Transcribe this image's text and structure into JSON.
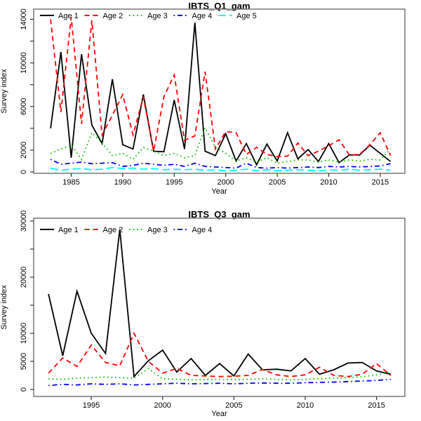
{
  "figure": {
    "background": "#ffffff",
    "axis_color": "#777777",
    "text_color": "#000000"
  },
  "chart_data": [
    {
      "type": "line",
      "title": "IBTS_Q1_gam",
      "xlabel": "Year",
      "ylabel": "Survey index",
      "ylim": [
        0,
        14000
      ],
      "xlim": [
        1983,
        2016
      ],
      "grid": false,
      "legend_position": "top-left-inside-horizontal",
      "xticks": [
        1985,
        1990,
        1995,
        2000,
        2005,
        2010,
        2015
      ],
      "yticks": [
        {
          "v": 0,
          "label": "0"
        },
        {
          "v": 2000,
          "label": "2000"
        },
        {
          "v": 4000,
          "label": ""
        },
        {
          "v": 6000,
          "label": "6000"
        },
        {
          "v": 8000,
          "label": ""
        },
        {
          "v": 10000,
          "label": "10000"
        },
        {
          "v": 12000,
          "label": ""
        },
        {
          "v": 14000,
          "label": "14000"
        }
      ],
      "years": [
        1983,
        1984,
        1985,
        1986,
        1987,
        1988,
        1989,
        1990,
        1991,
        1992,
        1993,
        1994,
        1995,
        1996,
        1997,
        1998,
        1999,
        2000,
        2001,
        2002,
        2003,
        2004,
        2005,
        2006,
        2007,
        2008,
        2009,
        2010,
        2011,
        2012,
        2013,
        2014,
        2015,
        2016
      ],
      "series": [
        {
          "name": "Age 1",
          "color": "#000000",
          "style": "solid",
          "values": [
            4000,
            11000,
            1300,
            10800,
            4300,
            2600,
            8500,
            2500,
            2100,
            7100,
            1900,
            1850,
            6600,
            2100,
            13700,
            1900,
            1500,
            3500,
            1000,
            2600,
            650,
            2550,
            1000,
            3600,
            1200,
            2050,
            950,
            2600,
            850,
            1550,
            1550,
            2450,
            1700,
            950
          ]
        },
        {
          "name": "Age 2",
          "color": "#ff0000",
          "style": "dashed",
          "values": [
            14000,
            5500,
            14200,
            4400,
            13900,
            3400,
            5200,
            7100,
            3400,
            6900,
            1900,
            6900,
            8900,
            2900,
            3300,
            9200,
            2100,
            3700,
            3600,
            1600,
            2250,
            1600,
            1400,
            1450,
            2650,
            1500,
            1900,
            2400,
            2950,
            1550,
            1600,
            2500,
            3600,
            1500
          ]
        },
        {
          "name": "Age 3",
          "color": "#00c000",
          "style": "dotted",
          "values": [
            1700,
            2100,
            2450,
            1150,
            3600,
            2650,
            1500,
            1700,
            1150,
            2250,
            1900,
            1500,
            1700,
            1300,
            1500,
            4050,
            2250,
            1700,
            1000,
            1300,
            900,
            1300,
            800,
            950,
            1100,
            1100,
            900,
            1100,
            900,
            1100,
            1000,
            1150,
            1100,
            2100
          ]
        },
        {
          "name": "Age 4",
          "color": "#0000ff",
          "style": "dashdot",
          "values": [
            1150,
            700,
            800,
            900,
            750,
            800,
            850,
            500,
            600,
            800,
            700,
            600,
            700,
            500,
            800,
            500,
            450,
            400,
            350,
            800,
            400,
            350,
            400,
            350,
            400,
            450,
            400,
            500,
            450,
            500,
            450,
            500,
            550,
            750
          ]
        },
        {
          "name": "Age 5",
          "color": "#00ffff",
          "style": "longdash",
          "values": [
            350,
            150,
            250,
            300,
            200,
            250,
            400,
            300,
            350,
            250,
            300,
            200,
            250,
            200,
            250,
            150,
            200,
            100,
            150,
            250,
            100,
            200,
            100,
            150,
            200,
            150,
            100,
            200,
            150,
            250,
            150,
            200,
            250,
            150
          ]
        }
      ]
    },
    {
      "type": "line",
      "title": "IBTS_Q3_gam",
      "xlabel": "Year",
      "ylabel": "Survey index",
      "ylim": [
        0,
        30000
      ],
      "xlim": [
        1992,
        2016
      ],
      "grid": false,
      "legend_position": "top-left-inside-horizontal",
      "xticks": [
        1995,
        2000,
        2005,
        2010,
        2015
      ],
      "yticks": [
        {
          "v": 0,
          "label": "0"
        },
        {
          "v": 5000,
          "label": "5000"
        },
        {
          "v": 10000,
          "label": "10000"
        },
        {
          "v": 15000,
          "label": ""
        },
        {
          "v": 20000,
          "label": "20000"
        },
        {
          "v": 25000,
          "label": ""
        },
        {
          "v": 30000,
          "label": "30000"
        }
      ],
      "years": [
        1992,
        1993,
        1994,
        1995,
        1996,
        1997,
        1998,
        1999,
        2000,
        2001,
        2002,
        2003,
        2004,
        2005,
        2006,
        2007,
        2008,
        2009,
        2010,
        2011,
        2012,
        2013,
        2014,
        2015,
        2016
      ],
      "series": [
        {
          "name": "Age 1",
          "color": "#000000",
          "style": "solid",
          "values": [
            17000,
            6000,
            17500,
            10000,
            6400,
            28500,
            2300,
            5100,
            7000,
            3100,
            5500,
            2500,
            4600,
            2400,
            6300,
            3500,
            3600,
            3300,
            5500,
            2700,
            3500,
            4700,
            4800,
            3300,
            2700
          ]
        },
        {
          "name": "Age 2",
          "color": "#ff0000",
          "style": "dashed",
          "values": [
            2900,
            5600,
            4100,
            7900,
            4800,
            4200,
            10000,
            5000,
            2900,
            3750,
            2500,
            2400,
            2300,
            2350,
            2500,
            3550,
            2600,
            2300,
            2600,
            3950,
            2500,
            2300,
            2700,
            4600,
            2500
          ]
        },
        {
          "name": "Age 3",
          "color": "#00c000",
          "style": "dotted",
          "values": [
            1900,
            1800,
            2000,
            2100,
            2200,
            2100,
            2000,
            3700,
            1900,
            1800,
            1700,
            1750,
            1800,
            1750,
            1800,
            1900,
            1800,
            1700,
            1800,
            1900,
            2000,
            2100,
            2250,
            2600,
            3100
          ]
        },
        {
          "name": "Age 4",
          "color": "#0000ff",
          "style": "dashdot",
          "values": [
            700,
            900,
            800,
            1000,
            900,
            1000,
            800,
            900,
            1000,
            1100,
            1000,
            1050,
            1100,
            1000,
            1100,
            1150,
            1100,
            1100,
            1200,
            1250,
            1300,
            1400,
            1500,
            1600,
            1800
          ]
        }
      ]
    }
  ]
}
